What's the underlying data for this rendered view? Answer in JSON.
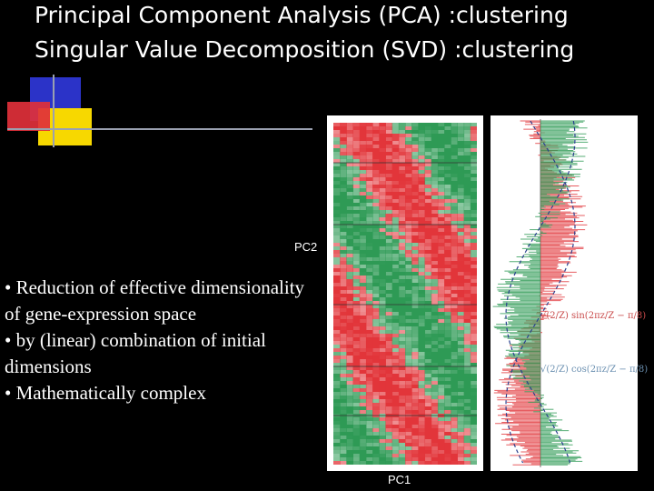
{
  "title": {
    "line1": "Principal Component Analysis (PCA) :clustering",
    "line2": "Singular Value Decomposition (SVD) :clustering"
  },
  "labels": {
    "pc2": "PC2",
    "pc1": "PC1"
  },
  "bullets": [
    "• Reduction of effective dimensionality of gene-expression space",
    "• by (linear) combination of initial dimensions",
    "• Mathematically complex"
  ],
  "formulas": {
    "sin": "√(2/Z) sin(2πz/Z − π/8)",
    "cos": "√(2/Z) cos(2πz/Z − π/8)"
  },
  "colors": {
    "background": "#000000",
    "heat_red": "#e2353a",
    "heat_green": "#2e9a55",
    "deco_blue": "#2b33c8",
    "deco_yellow": "#f7d800",
    "deco_red": "#e0303a"
  }
}
